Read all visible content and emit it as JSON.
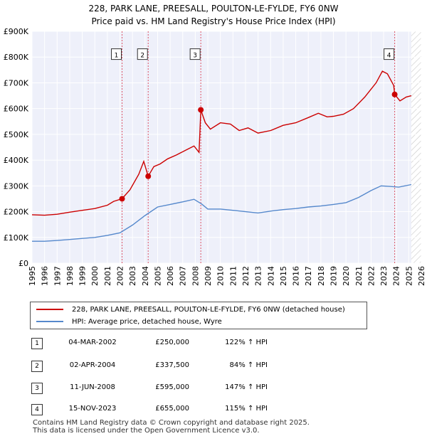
{
  "chart_data": {
    "type": "line",
    "title": "228, PARK LANE, PREESALL, POULTON-LE-FYLDE, FY6 0NW",
    "subtitle": "Price paid vs. HM Land Registry's House Price Index (HPI)",
    "xlabel": "",
    "ylabel": "",
    "xlim": [
      1995,
      2026
    ],
    "ylim": [
      0,
      900000
    ],
    "x_ticks": [
      "1995",
      "1996",
      "1997",
      "1998",
      "1999",
      "2000",
      "2001",
      "2002",
      "2003",
      "2004",
      "2005",
      "2006",
      "2007",
      "2008",
      "2009",
      "2010",
      "2011",
      "2012",
      "2013",
      "2014",
      "2015",
      "2016",
      "2017",
      "2018",
      "2019",
      "2020",
      "2021",
      "2022",
      "2023",
      "2024",
      "2025",
      "2026"
    ],
    "y_ticks": [
      {
        "value": 0,
        "label": "£0"
      },
      {
        "value": 100000,
        "label": "£100K"
      },
      {
        "value": 200000,
        "label": "£200K"
      },
      {
        "value": 300000,
        "label": "£300K"
      },
      {
        "value": 400000,
        "label": "£400K"
      },
      {
        "value": 500000,
        "label": "£500K"
      },
      {
        "value": 600000,
        "label": "£600K"
      },
      {
        "value": 700000,
        "label": "£700K"
      },
      {
        "value": 800000,
        "label": "£800K"
      },
      {
        "value": 900000,
        "label": "£900K"
      }
    ],
    "grid": true,
    "projection_start": 2025.2,
    "series": [
      {
        "name": "228, PARK LANE, PREESALL, POULTON-LE-FYLDE, FY6 0NW (detached house)",
        "color": "#cc0000",
        "points": [
          [
            1995,
            188000
          ],
          [
            1996,
            186000
          ],
          [
            1997,
            190000
          ],
          [
            1998,
            198000
          ],
          [
            1999,
            205000
          ],
          [
            2000,
            212000
          ],
          [
            2001,
            225000
          ],
          [
            2001.5,
            240000
          ],
          [
            2002.17,
            250000
          ],
          [
            2002.8,
            285000
          ],
          [
            2003.5,
            345000
          ],
          [
            2003.9,
            395000
          ],
          [
            2004.25,
            337500
          ],
          [
            2004.7,
            375000
          ],
          [
            2005.2,
            385000
          ],
          [
            2005.8,
            405000
          ],
          [
            2006.5,
            420000
          ],
          [
            2007.3,
            440000
          ],
          [
            2007.9,
            455000
          ],
          [
            2008.3,
            430000
          ],
          [
            2008.44,
            595000
          ],
          [
            2008.8,
            545000
          ],
          [
            2009.2,
            520000
          ],
          [
            2010,
            545000
          ],
          [
            2010.8,
            540000
          ],
          [
            2011.5,
            515000
          ],
          [
            2012.2,
            525000
          ],
          [
            2013,
            505000
          ],
          [
            2014,
            515000
          ],
          [
            2015,
            535000
          ],
          [
            2016,
            545000
          ],
          [
            2017,
            565000
          ],
          [
            2017.8,
            582000
          ],
          [
            2018.5,
            568000
          ],
          [
            2019,
            570000
          ],
          [
            2019.8,
            578000
          ],
          [
            2020.6,
            600000
          ],
          [
            2021.5,
            645000
          ],
          [
            2022.4,
            700000
          ],
          [
            2022.9,
            745000
          ],
          [
            2023.3,
            735000
          ],
          [
            2023.8,
            690000
          ],
          [
            2023.88,
            655000
          ],
          [
            2024.3,
            630000
          ],
          [
            2024.8,
            645000
          ],
          [
            2025.2,
            650000
          ]
        ]
      },
      {
        "name": "HPI: Average price, detached house, Wyre",
        "color": "#5588cc",
        "points": [
          [
            1995,
            85000
          ],
          [
            1996,
            85000
          ],
          [
            1997,
            88000
          ],
          [
            1998,
            92000
          ],
          [
            1999,
            96000
          ],
          [
            2000,
            100000
          ],
          [
            2001,
            108000
          ],
          [
            2002,
            118000
          ],
          [
            2003,
            148000
          ],
          [
            2004,
            185000
          ],
          [
            2005,
            218000
          ],
          [
            2006,
            228000
          ],
          [
            2007,
            238000
          ],
          [
            2007.9,
            248000
          ],
          [
            2008.5,
            230000
          ],
          [
            2009,
            210000
          ],
          [
            2010,
            210000
          ],
          [
            2011,
            205000
          ],
          [
            2012,
            200000
          ],
          [
            2013,
            195000
          ],
          [
            2014,
            202000
          ],
          [
            2015,
            208000
          ],
          [
            2016,
            212000
          ],
          [
            2017,
            218000
          ],
          [
            2018,
            222000
          ],
          [
            2019,
            228000
          ],
          [
            2020,
            235000
          ],
          [
            2021,
            255000
          ],
          [
            2022,
            282000
          ],
          [
            2022.8,
            300000
          ],
          [
            2023.5,
            298000
          ],
          [
            2024.2,
            295000
          ],
          [
            2025.2,
            305000
          ]
        ]
      }
    ],
    "sales": [
      {
        "id": "1",
        "x": 2002.17,
        "price": 250000
      },
      {
        "id": "2",
        "x": 2004.25,
        "price": 337500
      },
      {
        "id": "3",
        "x": 2008.44,
        "price": 595000
      },
      {
        "id": "4",
        "x": 2023.88,
        "price": 655000
      }
    ]
  },
  "legend": {
    "property_label": "228, PARK LANE, PREESALL, POULTON-LE-FYLDE, FY6 0NW (detached house)",
    "hpi_label": "HPI: Average price, detached house, Wyre"
  },
  "sales_table": [
    {
      "num": "1",
      "date": "04-MAR-2002",
      "price": "£250,000",
      "hpi": "122% ↑ HPI"
    },
    {
      "num": "2",
      "date": "02-APR-2004",
      "price": "£337,500",
      "hpi": "84% ↑ HPI"
    },
    {
      "num": "3",
      "date": "11-JUN-2008",
      "price": "£595,000",
      "hpi": "147% ↑ HPI"
    },
    {
      "num": "4",
      "date": "15-NOV-2023",
      "price": "£655,000",
      "hpi": "115% ↑ HPI"
    }
  ],
  "footer": {
    "line1": "Contains HM Land Registry data © Crown copyright and database right 2025.",
    "line2": "This data is licensed under the Open Government Licence v3.0."
  }
}
